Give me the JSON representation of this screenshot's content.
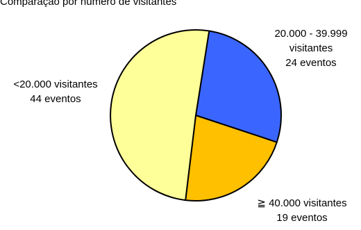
{
  "title": "Comparação por número de visitantes",
  "chart_data": {
    "type": "pie",
    "title": "Comparação por número de visitantes",
    "slices": [
      {
        "label_lines": [
          "20.000 - 39.999",
          "visitantes",
          "24 eventos"
        ],
        "value": 24,
        "color": "#3a66ff"
      },
      {
        "label_lines": [
          "≧ 40.000 visitantes",
          "19 eventos"
        ],
        "value": 19,
        "color": "#ffc000"
      },
      {
        "label_lines": [
          "<20.000 visitantes",
          "44 eventos"
        ],
        "value": 44,
        "color": "#ffff99"
      }
    ],
    "start_angle_deg": 9,
    "direction": "clockwise",
    "legend": "none"
  }
}
